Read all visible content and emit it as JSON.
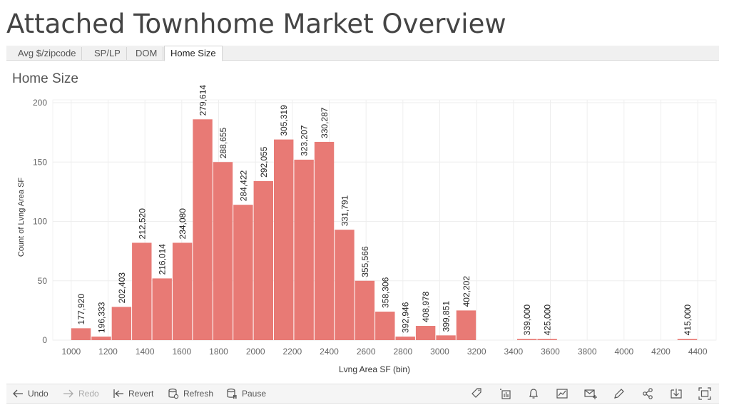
{
  "page": {
    "title": "Attached Townhome Market Overview"
  },
  "tabs": [
    {
      "label": "Avg $/zipcode",
      "active": false
    },
    {
      "label": "SP/LP",
      "active": false
    },
    {
      "label": "DOM",
      "active": false
    },
    {
      "label": "Home Size",
      "active": true
    }
  ],
  "chart_title": "Home Size",
  "toolbar": {
    "undo": "Undo",
    "redo": "Redo",
    "revert": "Revert",
    "refresh": "Refresh",
    "pause": "Pause"
  },
  "colors": {
    "bar": "#e87a75",
    "grid": "#eeeeee",
    "axis_text": "#666666"
  },
  "chart_data": {
    "type": "bar",
    "title": "Home Size",
    "xlabel": "Lvng Area SF (bin)",
    "ylabel": "Count of Lvng Area SF",
    "ylim": [
      0,
      200
    ],
    "yticks": [
      0,
      50,
      100,
      150,
      200
    ],
    "xlim": [
      900,
      4500
    ],
    "xticks": [
      1000,
      1200,
      1400,
      1600,
      1800,
      2000,
      2200,
      2400,
      2600,
      2800,
      3000,
      3200,
      3400,
      3600,
      3800,
      4000,
      4200,
      4400
    ],
    "bin_width": 110,
    "grid": true,
    "bins": [
      {
        "x": 1000,
        "count": 10,
        "label": "177,920"
      },
      {
        "x": 1110,
        "count": 3,
        "label": "196,333"
      },
      {
        "x": 1220,
        "count": 28,
        "label": "202,403"
      },
      {
        "x": 1330,
        "count": 82,
        "label": "212,520"
      },
      {
        "x": 1440,
        "count": 52,
        "label": "216,014"
      },
      {
        "x": 1550,
        "count": 82,
        "label": "234,080"
      },
      {
        "x": 1660,
        "count": 186,
        "label": "279,614"
      },
      {
        "x": 1770,
        "count": 150,
        "label": "288,655"
      },
      {
        "x": 1880,
        "count": 114,
        "label": "284,422"
      },
      {
        "x": 1990,
        "count": 134,
        "label": "292,055"
      },
      {
        "x": 2100,
        "count": 169,
        "label": "305,319"
      },
      {
        "x": 2210,
        "count": 152,
        "label": "323,207"
      },
      {
        "x": 2320,
        "count": 167,
        "label": "330,287"
      },
      {
        "x": 2430,
        "count": 93,
        "label": "331,791"
      },
      {
        "x": 2540,
        "count": 50,
        "label": "355,566"
      },
      {
        "x": 2650,
        "count": 24,
        "label": "358,306"
      },
      {
        "x": 2760,
        "count": 3,
        "label": "392,946"
      },
      {
        "x": 2870,
        "count": 12,
        "label": "408,978"
      },
      {
        "x": 2980,
        "count": 4,
        "label": "399,851"
      },
      {
        "x": 3090,
        "count": 25,
        "label": "402,202"
      },
      {
        "x": 3420,
        "count": 1,
        "label": "339,000"
      },
      {
        "x": 3530,
        "count": 1,
        "label": "425,000"
      },
      {
        "x": 4290,
        "count": 1,
        "label": "415,000"
      }
    ]
  }
}
